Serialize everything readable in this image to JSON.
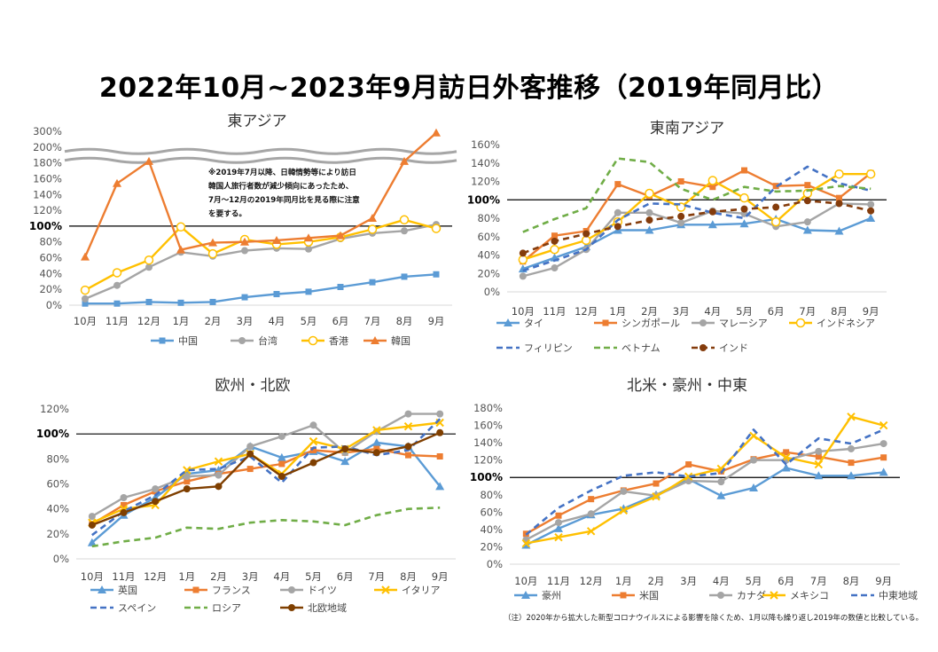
{
  "title": "2022年10月~2023年9月訪日外客推移（2019年同月比）",
  "footnote": "（注）2020年から拡大した新型コロナウイルスによる影響を除くため、1月以降も繰り返し2019年の数値と比較している。",
  "chart_data": [
    {
      "type": "line",
      "title": "東アジア",
      "categories": [
        "10月",
        "11月",
        "12月",
        "1月",
        "2月",
        "3月",
        "4月",
        "5月",
        "6月",
        "7月",
        "8月",
        "9月"
      ],
      "y_ticks": [
        "0%",
        "20%",
        "40%",
        "60%",
        "80%",
        "100%",
        "120%",
        "140%",
        "160%",
        "180%",
        "200%",
        "300%"
      ],
      "ylim": [
        0,
        300
      ],
      "axis_break": [
        200,
        300
      ],
      "reference_line": 100,
      "annotation": [
        "※2019年7月以降、日韓情勢等により訪日",
        "韓国人旅行者数が減少傾向にあったため、",
        "7月～12月の2019年同月比を見る際に注意",
        "を要する。"
      ],
      "series": [
        {
          "name": "中国",
          "color": "#5b9bd5",
          "marker": "square",
          "dash": false,
          "values": [
            2,
            2,
            4,
            3,
            4,
            10,
            14,
            17,
            23,
            29,
            36,
            39
          ]
        },
        {
          "name": "台湾",
          "color": "#a5a5a5",
          "marker": "circle",
          "dash": false,
          "values": [
            8,
            25,
            48,
            67,
            62,
            69,
            72,
            71,
            84,
            91,
            94,
            102
          ]
        },
        {
          "name": "香港",
          "color": "#ffc000",
          "marker": "circle-open",
          "dash": false,
          "values": [
            19,
            41,
            57,
            99,
            65,
            83,
            77,
            80,
            86,
            96,
            108,
            97
          ]
        },
        {
          "name": "韓国",
          "color": "#ed7d31",
          "marker": "triangle",
          "dash": false,
          "values": [
            61,
            154,
            182,
            70,
            79,
            80,
            82,
            85,
            88,
            110,
            182,
            290
          ]
        }
      ]
    },
    {
      "type": "line",
      "title": "東南アジア",
      "categories": [
        "10月",
        "11月",
        "12月",
        "1月",
        "2月",
        "3月",
        "4月",
        "5月",
        "6月",
        "7月",
        "8月",
        "9月"
      ],
      "y_ticks": [
        "0%",
        "20%",
        "40%",
        "60%",
        "80%",
        "100%",
        "120%",
        "140%",
        "160%"
      ],
      "ylim": [
        0,
        160
      ],
      "reference_line": 100,
      "series": [
        {
          "name": "タイ",
          "color": "#5b9bd5",
          "marker": "triangle",
          "dash": false,
          "values": [
            25,
            37,
            49,
            67,
            67,
            73,
            73,
            74,
            79,
            67,
            66,
            80
          ]
        },
        {
          "name": "シンガポール",
          "color": "#ed7d31",
          "marker": "square",
          "dash": false,
          "values": [
            33,
            61,
            66,
            117,
            104,
            120,
            114,
            132,
            115,
            116,
            102,
            129
          ]
        },
        {
          "name": "マレーシア",
          "color": "#a5a5a5",
          "marker": "circle",
          "dash": false,
          "values": [
            17,
            26,
            46,
            86,
            86,
            75,
            88,
            85,
            71,
            76,
            96,
            95
          ]
        },
        {
          "name": "インドネシア",
          "color": "#ffc000",
          "marker": "circle-open",
          "dash": false,
          "values": [
            35,
            46,
            56,
            76,
            107,
            92,
            121,
            102,
            76,
            107,
            128,
            128
          ]
        },
        {
          "name": "フィリピン",
          "color": "#4472c4",
          "marker": "none",
          "dash": true,
          "values": [
            23,
            34,
            46,
            78,
            96,
            95,
            86,
            80,
            114,
            136,
            118,
            110
          ]
        },
        {
          "name": "ベトナム",
          "color": "#70ad47",
          "marker": "none",
          "dash": true,
          "values": [
            65,
            79,
            91,
            145,
            141,
            112,
            100,
            114,
            109,
            110,
            115,
            112
          ]
        },
        {
          "name": "インド",
          "color": "#843c0c",
          "marker": "circle",
          "dash": true,
          "values": [
            42,
            55,
            63,
            71,
            78,
            82,
            87,
            90,
            92,
            99,
            96,
            88
          ]
        }
      ]
    },
    {
      "type": "line",
      "title": "欧州・北欧",
      "categories": [
        "10月",
        "11月",
        "12月",
        "1月",
        "2月",
        "3月",
        "4月",
        "5月",
        "6月",
        "7月",
        "8月",
        "9月"
      ],
      "y_ticks": [
        "0%",
        "20%",
        "40%",
        "60%",
        "80%",
        "100%",
        "120%"
      ],
      "ylim": [
        0,
        120
      ],
      "reference_line": 100,
      "series": [
        {
          "name": "英国",
          "color": "#5b9bd5",
          "marker": "triangle",
          "dash": false,
          "values": [
            13,
            35,
            49,
            68,
            71,
            90,
            81,
            86,
            78,
            93,
            90,
            58
          ]
        },
        {
          "name": "フランス",
          "color": "#ed7d31",
          "marker": "square",
          "dash": false,
          "values": [
            28,
            43,
            54,
            62,
            68,
            72,
            76,
            87,
            85,
            88,
            83,
            82
          ]
        },
        {
          "name": "ドイツ",
          "color": "#a5a5a5",
          "marker": "circle",
          "dash": false,
          "values": [
            34,
            49,
            56,
            66,
            67,
            90,
            98,
            107,
            85,
            102,
            116,
            116
          ]
        },
        {
          "name": "イタリア",
          "color": "#ffc000",
          "marker": "x",
          "dash": false,
          "values": [
            29,
            40,
            43,
            71,
            78,
            84,
            68,
            94,
            88,
            103,
            106,
            109
          ]
        },
        {
          "name": "スペイン",
          "color": "#4472c4",
          "marker": "none",
          "dash": true,
          "values": [
            19,
            38,
            51,
            71,
            72,
            82,
            61,
            89,
            90,
            83,
            87,
            112
          ]
        },
        {
          "name": "ロシア",
          "color": "#70ad47",
          "marker": "none",
          "dash": true,
          "values": [
            10,
            14,
            17,
            25,
            24,
            29,
            31,
            30,
            27,
            35,
            40,
            41
          ]
        },
        {
          "name": "北欧地域",
          "color": "#7f3f00",
          "marker": "circle",
          "dash": false,
          "values": [
            27,
            37,
            46,
            56,
            58,
            84,
            66,
            77,
            88,
            85,
            90,
            101
          ]
        }
      ]
    },
    {
      "type": "line",
      "title": "北米・豪州・中東",
      "categories": [
        "10月",
        "11月",
        "12月",
        "1月",
        "2月",
        "3月",
        "4月",
        "5月",
        "6月",
        "7月",
        "8月",
        "9月"
      ],
      "y_ticks": [
        "0%",
        "20%",
        "40%",
        "60%",
        "80%",
        "100%",
        "120%",
        "140%",
        "160%",
        "180%"
      ],
      "ylim": [
        0,
        180
      ],
      "reference_line": 100,
      "series": [
        {
          "name": "豪州",
          "color": "#5b9bd5",
          "marker": "triangle",
          "dash": false,
          "values": [
            22,
            41,
            57,
            64,
            80,
            98,
            79,
            88,
            111,
            102,
            102,
            106
          ]
        },
        {
          "name": "米国",
          "color": "#ed7d31",
          "marker": "square",
          "dash": false,
          "values": [
            35,
            56,
            75,
            85,
            93,
            115,
            107,
            121,
            129,
            124,
            117,
            123
          ]
        },
        {
          "name": "カナダ",
          "color": "#a5a5a5",
          "marker": "circle",
          "dash": false,
          "values": [
            28,
            48,
            58,
            84,
            79,
            96,
            95,
            120,
            120,
            130,
            133,
            139
          ]
        },
        {
          "name": "メキシコ",
          "color": "#ffc000",
          "marker": "x",
          "dash": false,
          "values": [
            24,
            31,
            38,
            62,
            78,
            101,
            110,
            148,
            123,
            115,
            170,
            160
          ]
        },
        {
          "name": "中東地域",
          "color": "#4472c4",
          "marker": "none",
          "dash": true,
          "values": [
            34,
            65,
            85,
            102,
            106,
            101,
            105,
            155,
            115,
            145,
            139,
            155
          ]
        }
      ]
    }
  ]
}
